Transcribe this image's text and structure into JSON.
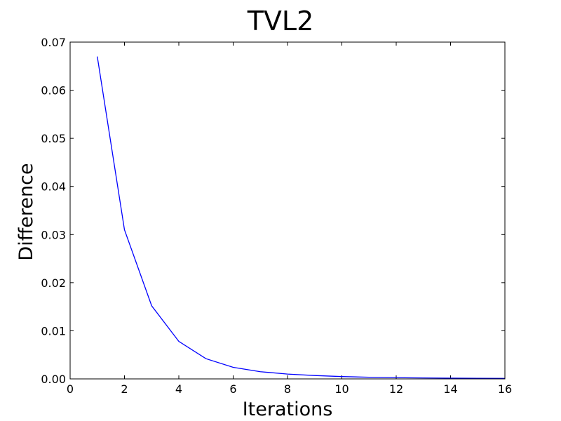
{
  "chart_data": {
    "type": "line",
    "title": "TVL2",
    "xlabel": "Iterations",
    "ylabel": "Difference",
    "xlim": [
      0,
      16
    ],
    "ylim": [
      0,
      0.07
    ],
    "xticks": [
      "0",
      "2",
      "4",
      "6",
      "8",
      "10",
      "12",
      "14",
      "16"
    ],
    "yticks": [
      "0.00",
      "0.01",
      "0.02",
      "0.03",
      "0.04",
      "0.05",
      "0.06",
      "0.07"
    ],
    "grid": false,
    "series": [
      {
        "color": "#0000ff",
        "x": [
          1,
          2,
          3,
          4,
          5,
          6,
          7,
          8,
          9,
          10,
          11,
          12,
          13,
          14,
          15,
          16
        ],
        "y": [
          0.067,
          0.031,
          0.0152,
          0.0078,
          0.0042,
          0.0024,
          0.0015,
          0.001,
          0.0007,
          0.00048,
          0.00035,
          0.00026,
          0.0002,
          0.00016,
          0.00013,
          0.0001
        ]
      }
    ]
  }
}
